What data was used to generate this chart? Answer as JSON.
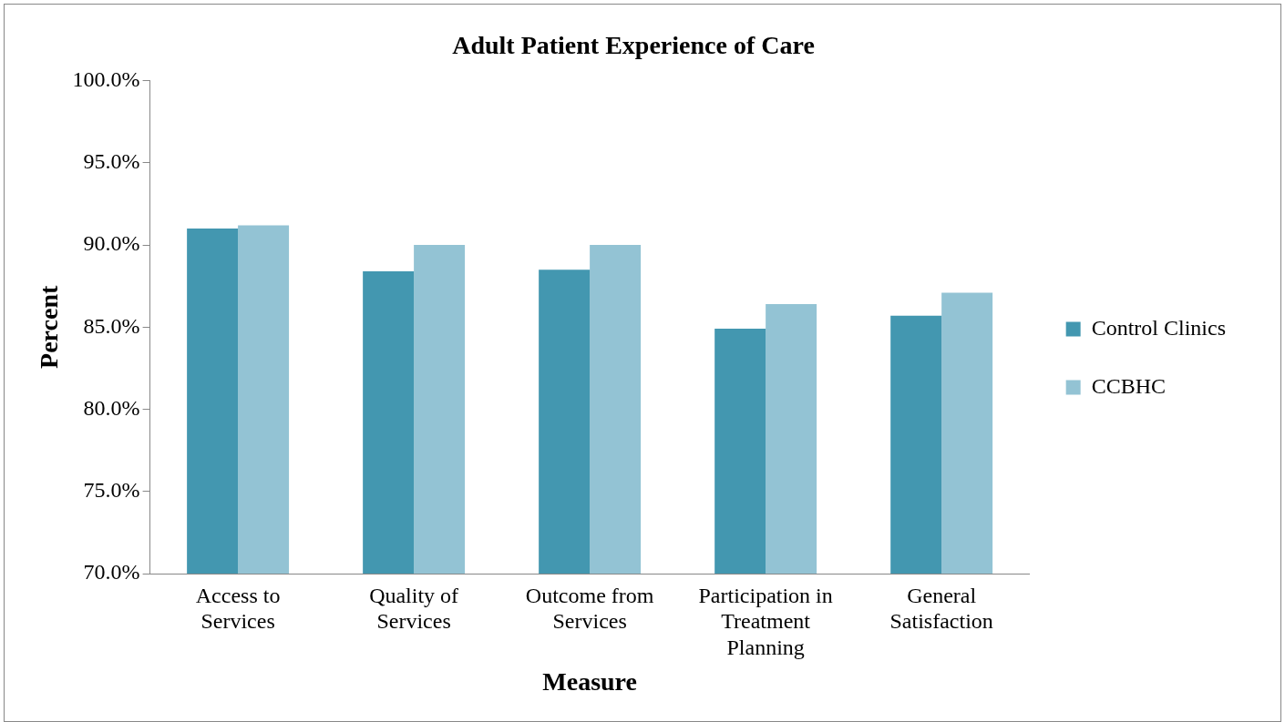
{
  "chart_data": {
    "type": "bar",
    "title": "Adult Patient Experience of Care",
    "xlabel": "Measure",
    "ylabel": "Percent",
    "categories": [
      "Access to Services",
      "Quality of Services",
      "Outcome from Services",
      "Participation in Treatment Planning",
      "General Satisfaction"
    ],
    "series": [
      {
        "name": "Control Clinics",
        "color": "#4397b0",
        "values": [
          91.0,
          88.4,
          88.5,
          84.9,
          85.7
        ]
      },
      {
        "name": "CCBHC",
        "color": "#93c3d4",
        "values": [
          91.2,
          90.0,
          90.0,
          86.4,
          87.1
        ]
      }
    ],
    "ylim": [
      70,
      100
    ],
    "yticks": [
      {
        "value": 70,
        "label": "70.0%"
      },
      {
        "value": 75,
        "label": "75.0%"
      },
      {
        "value": 80,
        "label": "80.0%"
      },
      {
        "value": 85,
        "label": "85.0%"
      },
      {
        "value": 90,
        "label": "90.0%"
      },
      {
        "value": 95,
        "label": "95.0%"
      },
      {
        "value": 100,
        "label": "100.0%"
      }
    ],
    "grid": false,
    "legend": "right"
  }
}
